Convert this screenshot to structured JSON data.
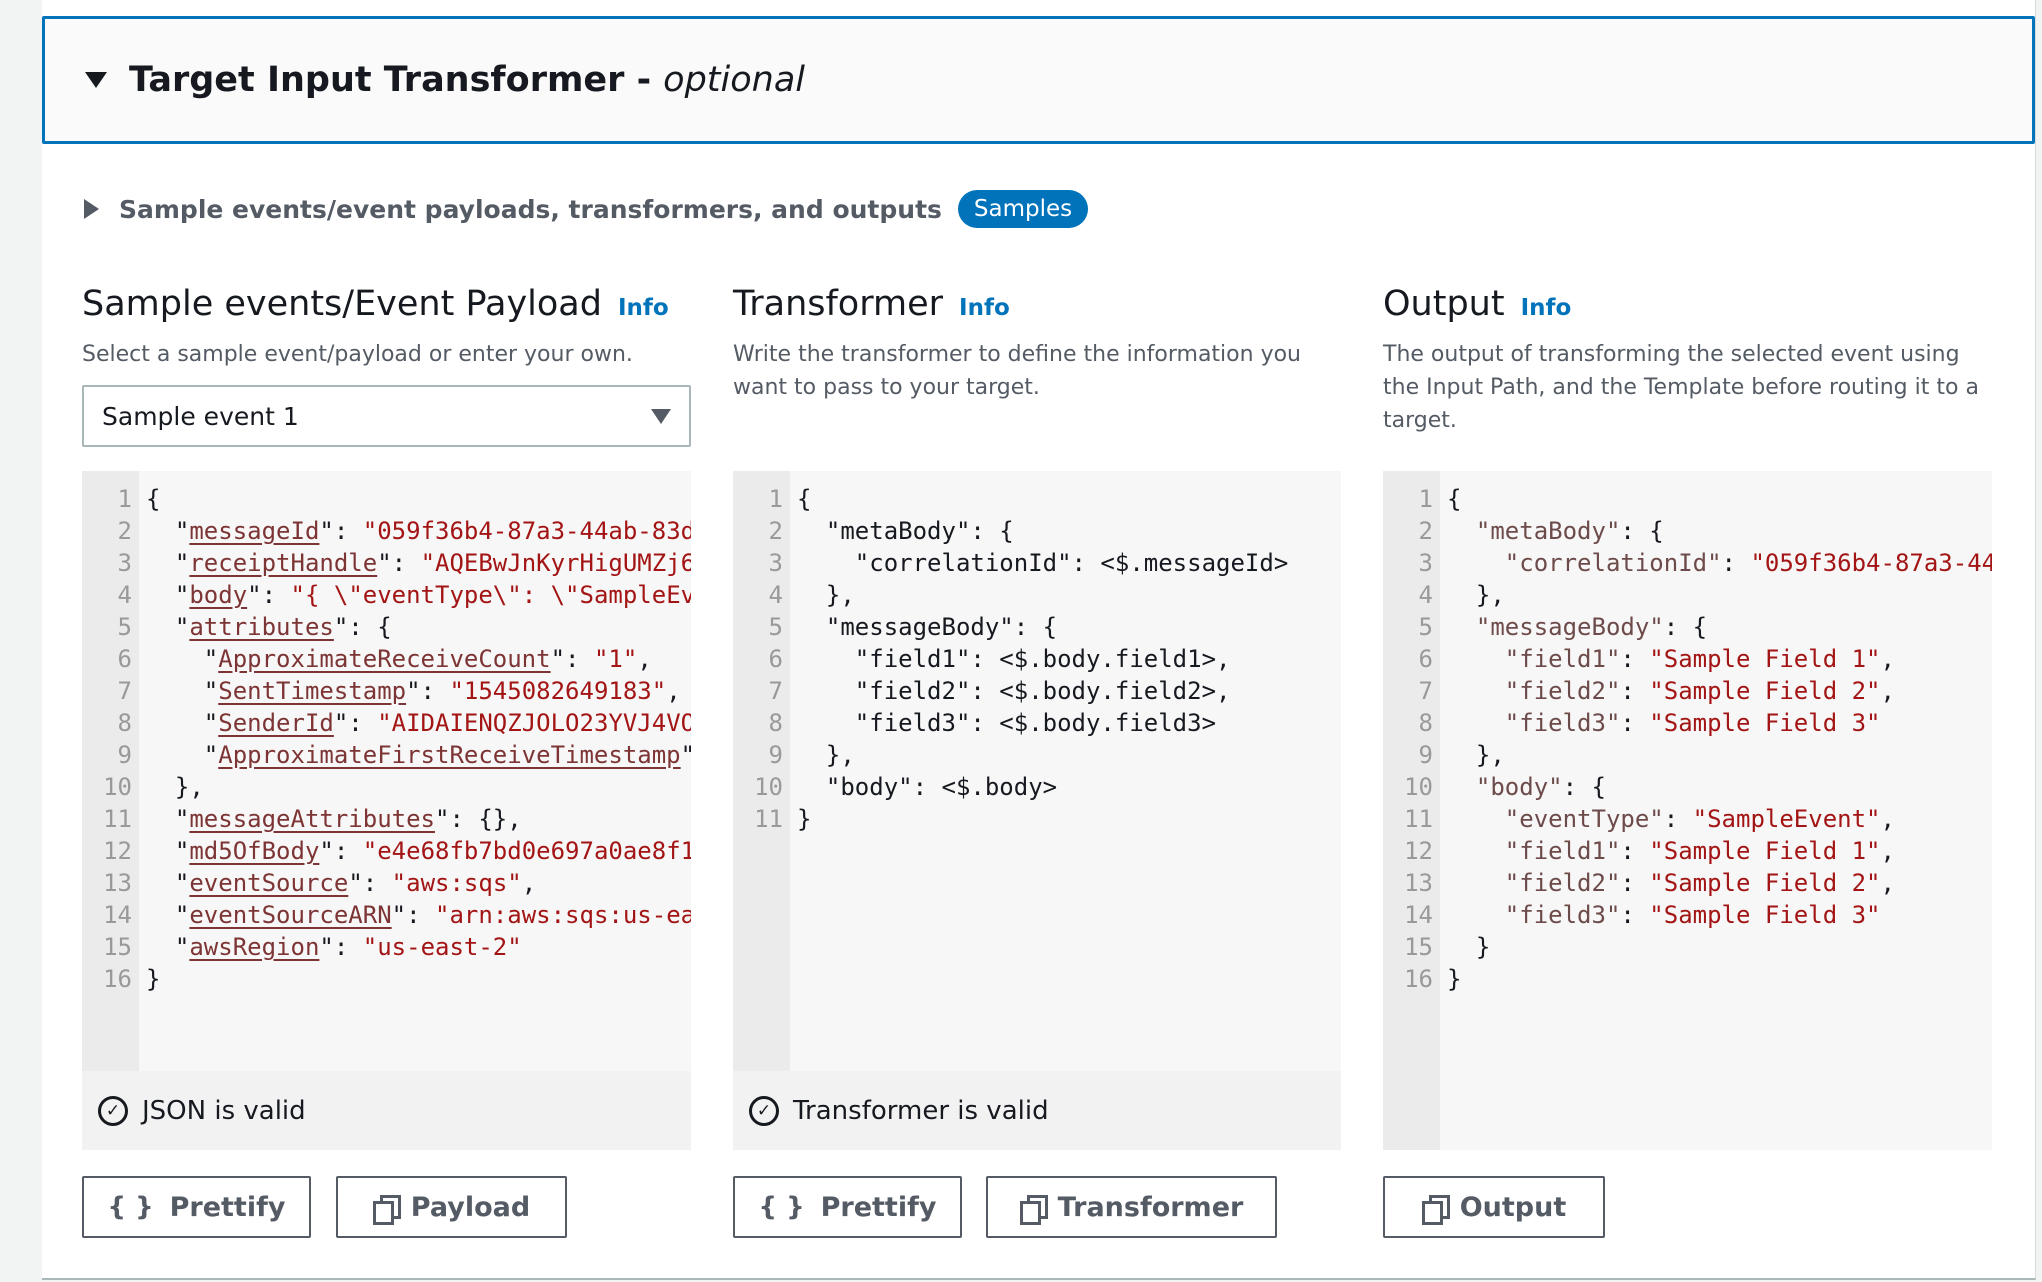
{
  "header": {
    "title": "Target Input Transformer -",
    "optional": "optional"
  },
  "samples_row": {
    "label": "Sample events/event payloads, transformers, and outputs",
    "badge": "Samples"
  },
  "payload": {
    "title": "Sample events/Event Payload",
    "info": "Info",
    "description": "Select a sample event/payload or enter your own.",
    "select_value": "Sample event 1",
    "status": "JSON is valid",
    "buttons": {
      "prettify": "Prettify",
      "copy": "Payload"
    },
    "lines": [
      [
        [
          "p",
          "{"
        ]
      ],
      [
        [
          "p",
          "  \""
        ],
        [
          "k",
          "messageId"
        ],
        [
          "p",
          "\": "
        ],
        [
          "s",
          "\"059f36b4-87a3-44ab-83d"
        ]
      ],
      [
        [
          "p",
          "  \""
        ],
        [
          "k",
          "receiptHandle"
        ],
        [
          "p",
          "\": "
        ],
        [
          "s",
          "\"AQEBwJnKyrHigUMZj6"
        ]
      ],
      [
        [
          "p",
          "  \""
        ],
        [
          "k",
          "body"
        ],
        [
          "p",
          "\": "
        ],
        [
          "s",
          "\"{ \\\"eventType\\\": \\\"SampleEv"
        ]
      ],
      [
        [
          "p",
          "  \""
        ],
        [
          "k",
          "attributes"
        ],
        [
          "p",
          "\": {"
        ]
      ],
      [
        [
          "p",
          "    \""
        ],
        [
          "k",
          "ApproximateReceiveCount"
        ],
        [
          "p",
          "\": "
        ],
        [
          "s",
          "\"1\""
        ],
        [
          "p",
          ","
        ]
      ],
      [
        [
          "p",
          "    \""
        ],
        [
          "k",
          "SentTimestamp"
        ],
        [
          "p",
          "\": "
        ],
        [
          "s",
          "\"1545082649183\""
        ],
        [
          "p",
          ","
        ]
      ],
      [
        [
          "p",
          "    \""
        ],
        [
          "k",
          "SenderId"
        ],
        [
          "p",
          "\": "
        ],
        [
          "s",
          "\"AIDAIENQZJOLO23YVJ4VO"
        ]
      ],
      [
        [
          "p",
          "    \""
        ],
        [
          "k",
          "ApproximateFirstReceiveTimestamp"
        ],
        [
          "p",
          "\""
        ]
      ],
      [
        [
          "p",
          "  },"
        ]
      ],
      [
        [
          "p",
          "  \""
        ],
        [
          "k",
          "messageAttributes"
        ],
        [
          "p",
          "\": {},"
        ]
      ],
      [
        [
          "p",
          "  \""
        ],
        [
          "k",
          "md5OfBody"
        ],
        [
          "p",
          "\": "
        ],
        [
          "s",
          "\"e4e68fb7bd0e697a0ae8f1"
        ]
      ],
      [
        [
          "p",
          "  \""
        ],
        [
          "k",
          "eventSource"
        ],
        [
          "p",
          "\": "
        ],
        [
          "s",
          "\"aws:sqs\""
        ],
        [
          "p",
          ","
        ]
      ],
      [
        [
          "p",
          "  \""
        ],
        [
          "k",
          "eventSourceARN"
        ],
        [
          "p",
          "\": "
        ],
        [
          "s",
          "\"arn:aws:sqs:us-ea"
        ]
      ],
      [
        [
          "p",
          "  \""
        ],
        [
          "k",
          "awsRegion"
        ],
        [
          "p",
          "\": "
        ],
        [
          "s",
          "\"us-east-2\""
        ]
      ],
      [
        [
          "p",
          "}"
        ]
      ]
    ]
  },
  "transformer": {
    "title": "Transformer",
    "info": "Info",
    "description": "Write the transformer to define the information you want to pass to your target.",
    "status": "Transformer is valid",
    "buttons": {
      "prettify": "Prettify",
      "copy": "Transformer"
    },
    "lines": [
      [
        [
          "p",
          "{"
        ]
      ],
      [
        [
          "p",
          "  \"metaBody\": {"
        ]
      ],
      [
        [
          "p",
          "    \"correlationId\": <$.messageId>"
        ]
      ],
      [
        [
          "p",
          "  },"
        ]
      ],
      [
        [
          "p",
          "  \"messageBody\": {"
        ]
      ],
      [
        [
          "p",
          "    \"field1\": <$.body.field1>,"
        ]
      ],
      [
        [
          "p",
          "    \"field2\": <$.body.field2>,"
        ]
      ],
      [
        [
          "p",
          "    \"field3\": <$.body.field3>"
        ]
      ],
      [
        [
          "p",
          "  },"
        ]
      ],
      [
        [
          "p",
          "  \"body\": <$.body>"
        ]
      ],
      [
        [
          "p",
          "}"
        ]
      ]
    ]
  },
  "output": {
    "title": "Output",
    "info": "Info",
    "description": "The output of transforming the selected event using the Input Path, and the Template before routing it to a target.",
    "buttons": {
      "copy": "Output"
    },
    "lines": [
      [
        [
          "p",
          "{"
        ]
      ],
      [
        [
          "p",
          "  "
        ],
        [
          "k",
          "\"metaBody\""
        ],
        [
          "p",
          ": {"
        ]
      ],
      [
        [
          "p",
          "    "
        ],
        [
          "k",
          "\"correlationId\""
        ],
        [
          "p",
          ": "
        ],
        [
          "s",
          "\"059f36b4-87a3-44"
        ]
      ],
      [
        [
          "p",
          "  },"
        ]
      ],
      [
        [
          "p",
          "  "
        ],
        [
          "k",
          "\"messageBody\""
        ],
        [
          "p",
          ": {"
        ]
      ],
      [
        [
          "p",
          "    "
        ],
        [
          "k",
          "\"field1\""
        ],
        [
          "p",
          ": "
        ],
        [
          "s",
          "\"Sample Field 1\""
        ],
        [
          "p",
          ","
        ]
      ],
      [
        [
          "p",
          "    "
        ],
        [
          "k",
          "\"field2\""
        ],
        [
          "p",
          ": "
        ],
        [
          "s",
          "\"Sample Field 2\""
        ],
        [
          "p",
          ","
        ]
      ],
      [
        [
          "p",
          "    "
        ],
        [
          "k",
          "\"field3\""
        ],
        [
          "p",
          ": "
        ],
        [
          "s",
          "\"Sample Field 3\""
        ]
      ],
      [
        [
          "p",
          "  },"
        ]
      ],
      [
        [
          "p",
          "  "
        ],
        [
          "k",
          "\"body\""
        ],
        [
          "p",
          ": {"
        ]
      ],
      [
        [
          "p",
          "    "
        ],
        [
          "k",
          "\"eventType\""
        ],
        [
          "p",
          ": "
        ],
        [
          "s",
          "\"SampleEvent\""
        ],
        [
          "p",
          ","
        ]
      ],
      [
        [
          "p",
          "    "
        ],
        [
          "k",
          "\"field1\""
        ],
        [
          "p",
          ": "
        ],
        [
          "s",
          "\"Sample Field 1\""
        ],
        [
          "p",
          ","
        ]
      ],
      [
        [
          "p",
          "    "
        ],
        [
          "k",
          "\"field2\""
        ],
        [
          "p",
          ": "
        ],
        [
          "s",
          "\"Sample Field 2\""
        ],
        [
          "p",
          ","
        ]
      ],
      [
        [
          "p",
          "    "
        ],
        [
          "k",
          "\"field3\""
        ],
        [
          "p",
          ": "
        ],
        [
          "s",
          "\"Sample Field 3\""
        ]
      ],
      [
        [
          "p",
          "  }"
        ]
      ],
      [
        [
          "p",
          "}"
        ]
      ]
    ]
  },
  "colors": {
    "accent": "#0073bb",
    "string": "#a31515",
    "key_payload": "#7d3434",
    "key_output": "#6e4b4b"
  }
}
